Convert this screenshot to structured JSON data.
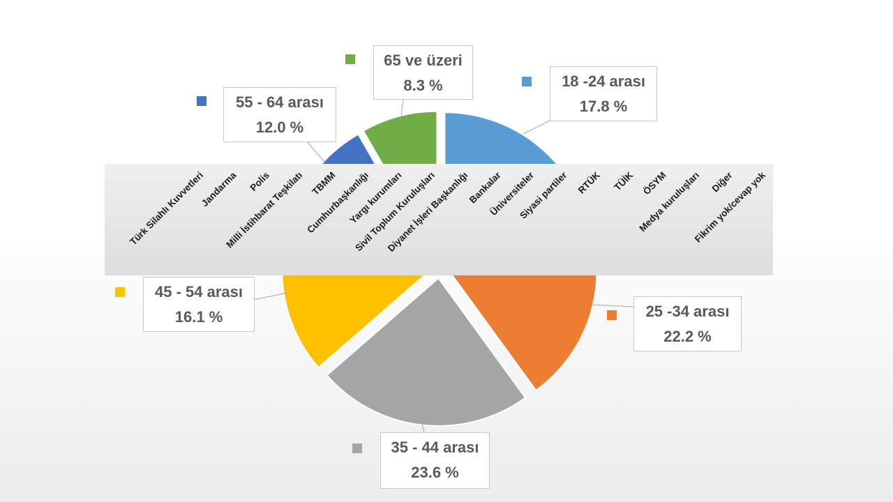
{
  "chart_data": {
    "type": "pie",
    "slices": [
      {
        "label": "18 -24 arası",
        "value": 17.8,
        "text": "17.8 %",
        "color": "#5b9bd5"
      },
      {
        "label": "25 -34 arası",
        "value": 22.2,
        "text": "22.2 %",
        "color": "#ed7d31"
      },
      {
        "label": "35 - 44 arası",
        "value": 23.6,
        "text": "23.6 %",
        "color": "#a5a5a5"
      },
      {
        "label": "45 - 54 arası",
        "value": 16.1,
        "text": "16.1 %",
        "color": "#ffc000"
      },
      {
        "label": "55 - 64 arası",
        "value": 12.0,
        "text": "12.0 %",
        "color": "#4472c4"
      },
      {
        "label": "65 ve üzeri",
        "value": 8.3,
        "text": "8.3 %",
        "color": "#70ad47"
      }
    ],
    "category_labels": [
      "Türk Silahlı Kuvvetleri",
      "Jandarma",
      "Polis",
      "Milli İstihbarat Teşkilatı",
      "TBMM",
      "Cumhurbaşkanlığı",
      "Yargı kurumları",
      "Sivil Toplum Kuruluşları",
      "Diyanet İşleri Başkanlığı",
      "Bankalar",
      "Üniversiteler",
      "Siyasi partiler",
      "RTÜK",
      "TÜİK",
      "ÖSYM",
      "Medya kuruluşları",
      "Diğer",
      "Fikrim yok/cevap yok"
    ]
  }
}
